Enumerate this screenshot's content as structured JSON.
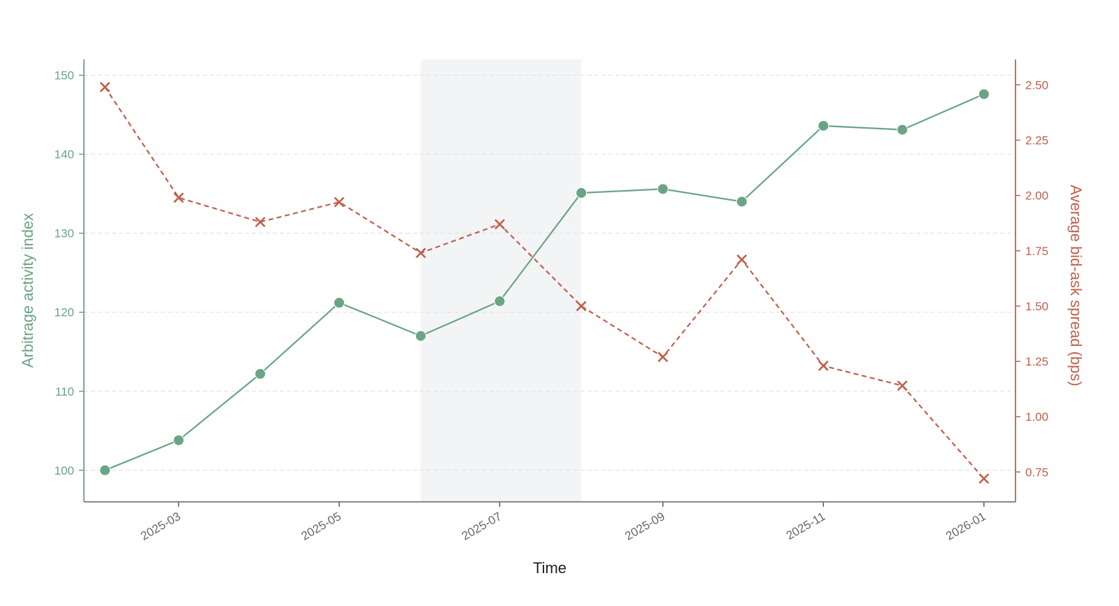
{
  "chart_data": {
    "type": "line",
    "xlabel": "Time",
    "x": [
      "2025-02-01",
      "2025-03-01",
      "2025-04-01",
      "2025-05-01",
      "2025-06-01",
      "2025-07-01",
      "2025-08-01",
      "2025-09-01",
      "2025-10-01",
      "2025-11-01",
      "2025-12-01",
      "2026-01-01"
    ],
    "x_tick_labels": [
      "2025-03",
      "2025-05",
      "2025-07",
      "2025-09",
      "2025-11",
      "2026-01"
    ],
    "x_ticks": [
      "2025-03-01",
      "2025-05-01",
      "2025-07-01",
      "2025-09-01",
      "2025-11-01",
      "2026-01-01"
    ],
    "shaded_region": {
      "start": "2025-06-01",
      "end": "2025-08-01"
    },
    "grid": "horizontal dashed",
    "left_axis": {
      "label": "Arbitrage activity index",
      "ylim": [
        96,
        152
      ],
      "ticks": [
        "100",
        "110",
        "120",
        "130",
        "140",
        "150"
      ],
      "color": "#6aa484"
    },
    "right_axis": {
      "label": "Average bid-ask spread (bps)",
      "ylim": [
        0.615,
        2.615
      ],
      "ticks": [
        "0.75",
        "1.00",
        "1.25",
        "1.50",
        "1.75",
        "2.00",
        "2.25",
        "2.50"
      ],
      "color": "#c0604c"
    },
    "series": [
      {
        "axis": "left",
        "line": "solid",
        "marker": "circle",
        "color": "#6aa484",
        "values": [
          100.0,
          103.8,
          112.2,
          121.2,
          117.0,
          121.4,
          135.1,
          135.6,
          134.0,
          143.6,
          143.1,
          147.6
        ]
      },
      {
        "axis": "right",
        "line": "dashed",
        "marker": "x",
        "color": "#c0604c",
        "values": [
          2.49,
          1.99,
          1.88,
          1.97,
          1.74,
          1.87,
          1.5,
          1.27,
          1.71,
          1.23,
          1.14,
          0.72
        ]
      }
    ]
  }
}
